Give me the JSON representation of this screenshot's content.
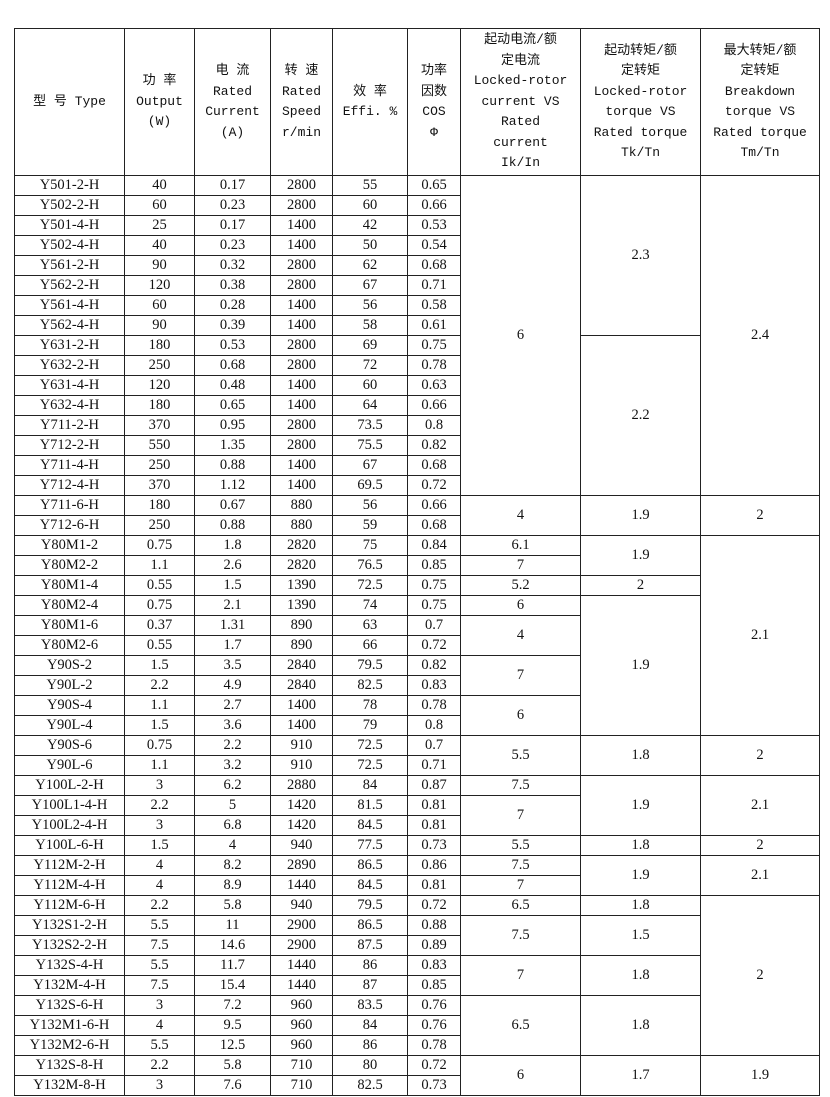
{
  "table": {
    "headers": [
      [
        "型 号 Type"
      ],
      [
        "功 率",
        "Output",
        "(W)"
      ],
      [
        "电 流",
        "Rated",
        "Current",
        "(A)"
      ],
      [
        "转 速",
        "Rated",
        "Speed",
        "r/min"
      ],
      [
        "效 率",
        "Effi. %"
      ],
      [
        "功率",
        "因数",
        "COS",
        "Φ"
      ],
      [
        "起动电流/额",
        "定电流",
        "Locked-rotor",
        "current VS",
        "Rated",
        "current",
        "Ik/In"
      ],
      [
        "起动转矩/额",
        "定转矩",
        "Locked-rotor",
        "torque VS",
        "Rated torque",
        "Tk/Tn"
      ],
      [
        "最大转矩/额",
        "定转矩",
        "Breakdown",
        "torque VS",
        "Rated torque",
        "Tm/Tn"
      ]
    ],
    "rows": [
      [
        "Y501-2-H",
        "40",
        "0.17",
        "2800",
        "55",
        "0.65"
      ],
      [
        "Y502-2-H",
        "60",
        "0.23",
        "2800",
        "60",
        "0.66"
      ],
      [
        "Y501-4-H",
        "25",
        "0.17",
        "1400",
        "42",
        "0.53"
      ],
      [
        "Y502-4-H",
        "40",
        "0.23",
        "1400",
        "50",
        "0.54"
      ],
      [
        "Y561-2-H",
        "90",
        "0.32",
        "2800",
        "62",
        "0.68"
      ],
      [
        "Y562-2-H",
        "120",
        "0.38",
        "2800",
        "67",
        "0.71"
      ],
      [
        "Y561-4-H",
        "60",
        "0.28",
        "1400",
        "56",
        "0.58"
      ],
      [
        "Y562-4-H",
        "90",
        "0.39",
        "1400",
        "58",
        "0.61"
      ],
      [
        "Y631-2-H",
        "180",
        "0.53",
        "2800",
        "69",
        "0.75"
      ],
      [
        "Y632-2-H",
        "250",
        "0.68",
        "2800",
        "72",
        "0.78"
      ],
      [
        "Y631-4-H",
        "120",
        "0.48",
        "1400",
        "60",
        "0.63"
      ],
      [
        "Y632-4-H",
        "180",
        "0.65",
        "1400",
        "64",
        "0.66"
      ],
      [
        "Y711-2-H",
        "370",
        "0.95",
        "2800",
        "73.5",
        "0.8"
      ],
      [
        "Y712-2-H",
        "550",
        "1.35",
        "2800",
        "75.5",
        "0.82"
      ],
      [
        "Y711-4-H",
        "250",
        "0.88",
        "1400",
        "67",
        "0.68"
      ],
      [
        "Y712-4-H",
        "370",
        "1.12",
        "1400",
        "69.5",
        "0.72"
      ],
      [
        "Y711-6-H",
        "180",
        "0.67",
        "880",
        "56",
        "0.66"
      ],
      [
        "Y712-6-H",
        "250",
        "0.88",
        "880",
        "59",
        "0.68"
      ],
      [
        "Y80M1-2",
        "0.75",
        "1.8",
        "2820",
        "75",
        "0.84"
      ],
      [
        "Y80M2-2",
        "1.1",
        "2.6",
        "2820",
        "76.5",
        "0.85"
      ],
      [
        "Y80M1-4",
        "0.55",
        "1.5",
        "1390",
        "72.5",
        "0.75"
      ],
      [
        "Y80M2-4",
        "0.75",
        "2.1",
        "1390",
        "74",
        "0.75"
      ],
      [
        "Y80M1-6",
        "0.37",
        "1.31",
        "890",
        "63",
        "0.7"
      ],
      [
        "Y80M2-6",
        "0.55",
        "1.7",
        "890",
        "66",
        "0.72"
      ],
      [
        "Y90S-2",
        "1.5",
        "3.5",
        "2840",
        "79.5",
        "0.82"
      ],
      [
        "Y90L-2",
        "2.2",
        "4.9",
        "2840",
        "82.5",
        "0.83"
      ],
      [
        "Y90S-4",
        "1.1",
        "2.7",
        "1400",
        "78",
        "0.78"
      ],
      [
        "Y90L-4",
        "1.5",
        "3.6",
        "1400",
        "79",
        "0.8"
      ],
      [
        "Y90S-6",
        "0.75",
        "2.2",
        "910",
        "72.5",
        "0.7"
      ],
      [
        "Y90L-6",
        "1.1",
        "3.2",
        "910",
        "72.5",
        "0.71"
      ],
      [
        "Y100L-2-H",
        "3",
        "6.2",
        "2880",
        "84",
        "0.87"
      ],
      [
        "Y100L1-4-H",
        "2.2",
        "5",
        "1420",
        "81.5",
        "0.81"
      ],
      [
        "Y100L2-4-H",
        "3",
        "6.8",
        "1420",
        "84.5",
        "0.81"
      ],
      [
        "Y100L-6-H",
        "1.5",
        "4",
        "940",
        "77.5",
        "0.73"
      ],
      [
        "Y112M-2-H",
        "4",
        "8.2",
        "2890",
        "86.5",
        "0.86"
      ],
      [
        "Y112M-4-H",
        "4",
        "8.9",
        "1440",
        "84.5",
        "0.81"
      ],
      [
        "Y112M-6-H",
        "2.2",
        "5.8",
        "940",
        "79.5",
        "0.72"
      ],
      [
        "Y132S1-2-H",
        "5.5",
        "11",
        "2900",
        "86.5",
        "0.88"
      ],
      [
        "Y132S2-2-H",
        "7.5",
        "14.6",
        "2900",
        "87.5",
        "0.89"
      ],
      [
        "Y132S-4-H",
        "5.5",
        "11.7",
        "1440",
        "86",
        "0.83"
      ],
      [
        "Y132M-4-H",
        "7.5",
        "15.4",
        "1440",
        "87",
        "0.85"
      ],
      [
        "Y132S-6-H",
        "3",
        "7.2",
        "960",
        "83.5",
        "0.76"
      ],
      [
        "Y132M1-6-H",
        "4",
        "9.5",
        "960",
        "84",
        "0.76"
      ],
      [
        "Y132M2-6-H",
        "5.5",
        "12.5",
        "960",
        "86",
        "0.78"
      ],
      [
        "Y132S-8-H",
        "2.2",
        "5.8",
        "710",
        "80",
        "0.72"
      ],
      [
        "Y132M-8-H",
        "3",
        "7.6",
        "710",
        "82.5",
        "0.73"
      ]
    ],
    "ik_in": [
      {
        "value": "6",
        "span": 16
      },
      {
        "value": "4",
        "span": 2
      },
      {
        "value": "6.1",
        "span": 1
      },
      {
        "value": "7",
        "span": 1
      },
      {
        "value": "5.2",
        "span": 1
      },
      {
        "value": "6",
        "span": 1
      },
      {
        "value": "4",
        "span": 2
      },
      {
        "value": "7",
        "span": 2
      },
      {
        "value": "6",
        "span": 2
      },
      {
        "value": "5.5",
        "span": 2
      },
      {
        "value": "7.5",
        "span": 1
      },
      {
        "value": "7",
        "span": 2
      },
      {
        "value": "5.5",
        "span": 1
      },
      {
        "value": "7.5",
        "span": 1
      },
      {
        "value": "7",
        "span": 1
      },
      {
        "value": "6.5",
        "span": 1
      },
      {
        "value": "7.5",
        "span": 2
      },
      {
        "value": "7",
        "span": 2
      },
      {
        "value": "6.5",
        "span": 3
      },
      {
        "value": "6",
        "span": 2
      }
    ],
    "tk_tn": [
      {
        "value": "2.3",
        "span": 8
      },
      {
        "value": "2.2",
        "span": 8
      },
      {
        "value": "1.9",
        "span": 2
      },
      {
        "value": "1.9",
        "span": 2
      },
      {
        "value": "2",
        "span": 1
      },
      {
        "value": "1.9",
        "span": 7
      },
      {
        "value": "1.8",
        "span": 2
      },
      {
        "value": "1.9",
        "span": 3
      },
      {
        "value": "1.8",
        "span": 1
      },
      {
        "value": "1.9",
        "span": 2
      },
      {
        "value": "1.8",
        "span": 1
      },
      {
        "value": "1.5",
        "span": 2
      },
      {
        "value": "1.8",
        "span": 2
      },
      {
        "value": "1.8",
        "span": 3
      },
      {
        "value": "1.7",
        "span": 2
      }
    ],
    "tm_tn": [
      {
        "value": "2.4",
        "span": 16
      },
      {
        "value": "2",
        "span": 2
      },
      {
        "value": "2.1",
        "span": 10
      },
      {
        "value": "2",
        "span": 2
      },
      {
        "value": "2.1",
        "span": 3
      },
      {
        "value": "2",
        "span": 1
      },
      {
        "value": "2.1",
        "span": 2
      },
      {
        "value": "2",
        "span": 8
      },
      {
        "value": "1.9",
        "span": 2
      }
    ]
  }
}
